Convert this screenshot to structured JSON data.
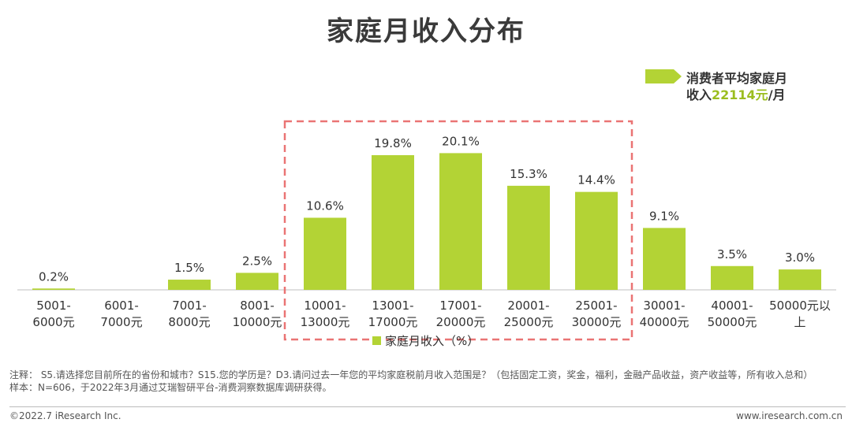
{
  "title": "家庭月收入分布",
  "callout": {
    "line1": "消费者平均家庭月",
    "line2_prefix": "收入",
    "line2_value": "22114元",
    "line2_suffix": "/月"
  },
  "chart_data": {
    "type": "bar",
    "categories": [
      [
        "5001-",
        "6000元"
      ],
      [
        "6001-",
        "7000元"
      ],
      [
        "7001-",
        "8000元"
      ],
      [
        "8001-",
        "10000元"
      ],
      [
        "10001-",
        "13000元"
      ],
      [
        "13001-",
        "17000元"
      ],
      [
        "17001-",
        "20000元"
      ],
      [
        "20001-",
        "25000元"
      ],
      [
        "25001-",
        "30000元"
      ],
      [
        "30001-",
        "40000元"
      ],
      [
        "40001-",
        "50000元"
      ],
      [
        "50000元以",
        "上"
      ]
    ],
    "values": [
      0.2,
      null,
      1.5,
      2.5,
      10.6,
      19.8,
      20.1,
      15.3,
      14.4,
      9.1,
      3.5,
      3.0
    ],
    "value_labels": [
      "0.2%",
      "",
      "1.5%",
      "2.5%",
      "10.6%",
      "19.8%",
      "20.1%",
      "15.3%",
      "14.4%",
      "9.1%",
      "3.5%",
      "3.0%"
    ],
    "legend": "家庭月收入（%）",
    "highlight_categories": [
      4,
      8
    ],
    "color": "#b3d335",
    "highlight_color": "#ea7474",
    "ylim": [
      0,
      22
    ]
  },
  "notes": {
    "line1": "注释：  S5.请选择您目前所在的省份和城市？S15.您的学历是？D3.请问过去一年您的平均家庭税前月收入范围是？（包括固定工资，奖金，福利，金融产品收益，资产收益等，所有收入总和）",
    "line2": "样本：N=606，于2022年3月通过艾瑞智研平台-消费洞察数据库调研获得。"
  },
  "footer": {
    "copyright": "©2022.7 iResearch Inc.",
    "website": "www.iresearch.com.cn"
  }
}
